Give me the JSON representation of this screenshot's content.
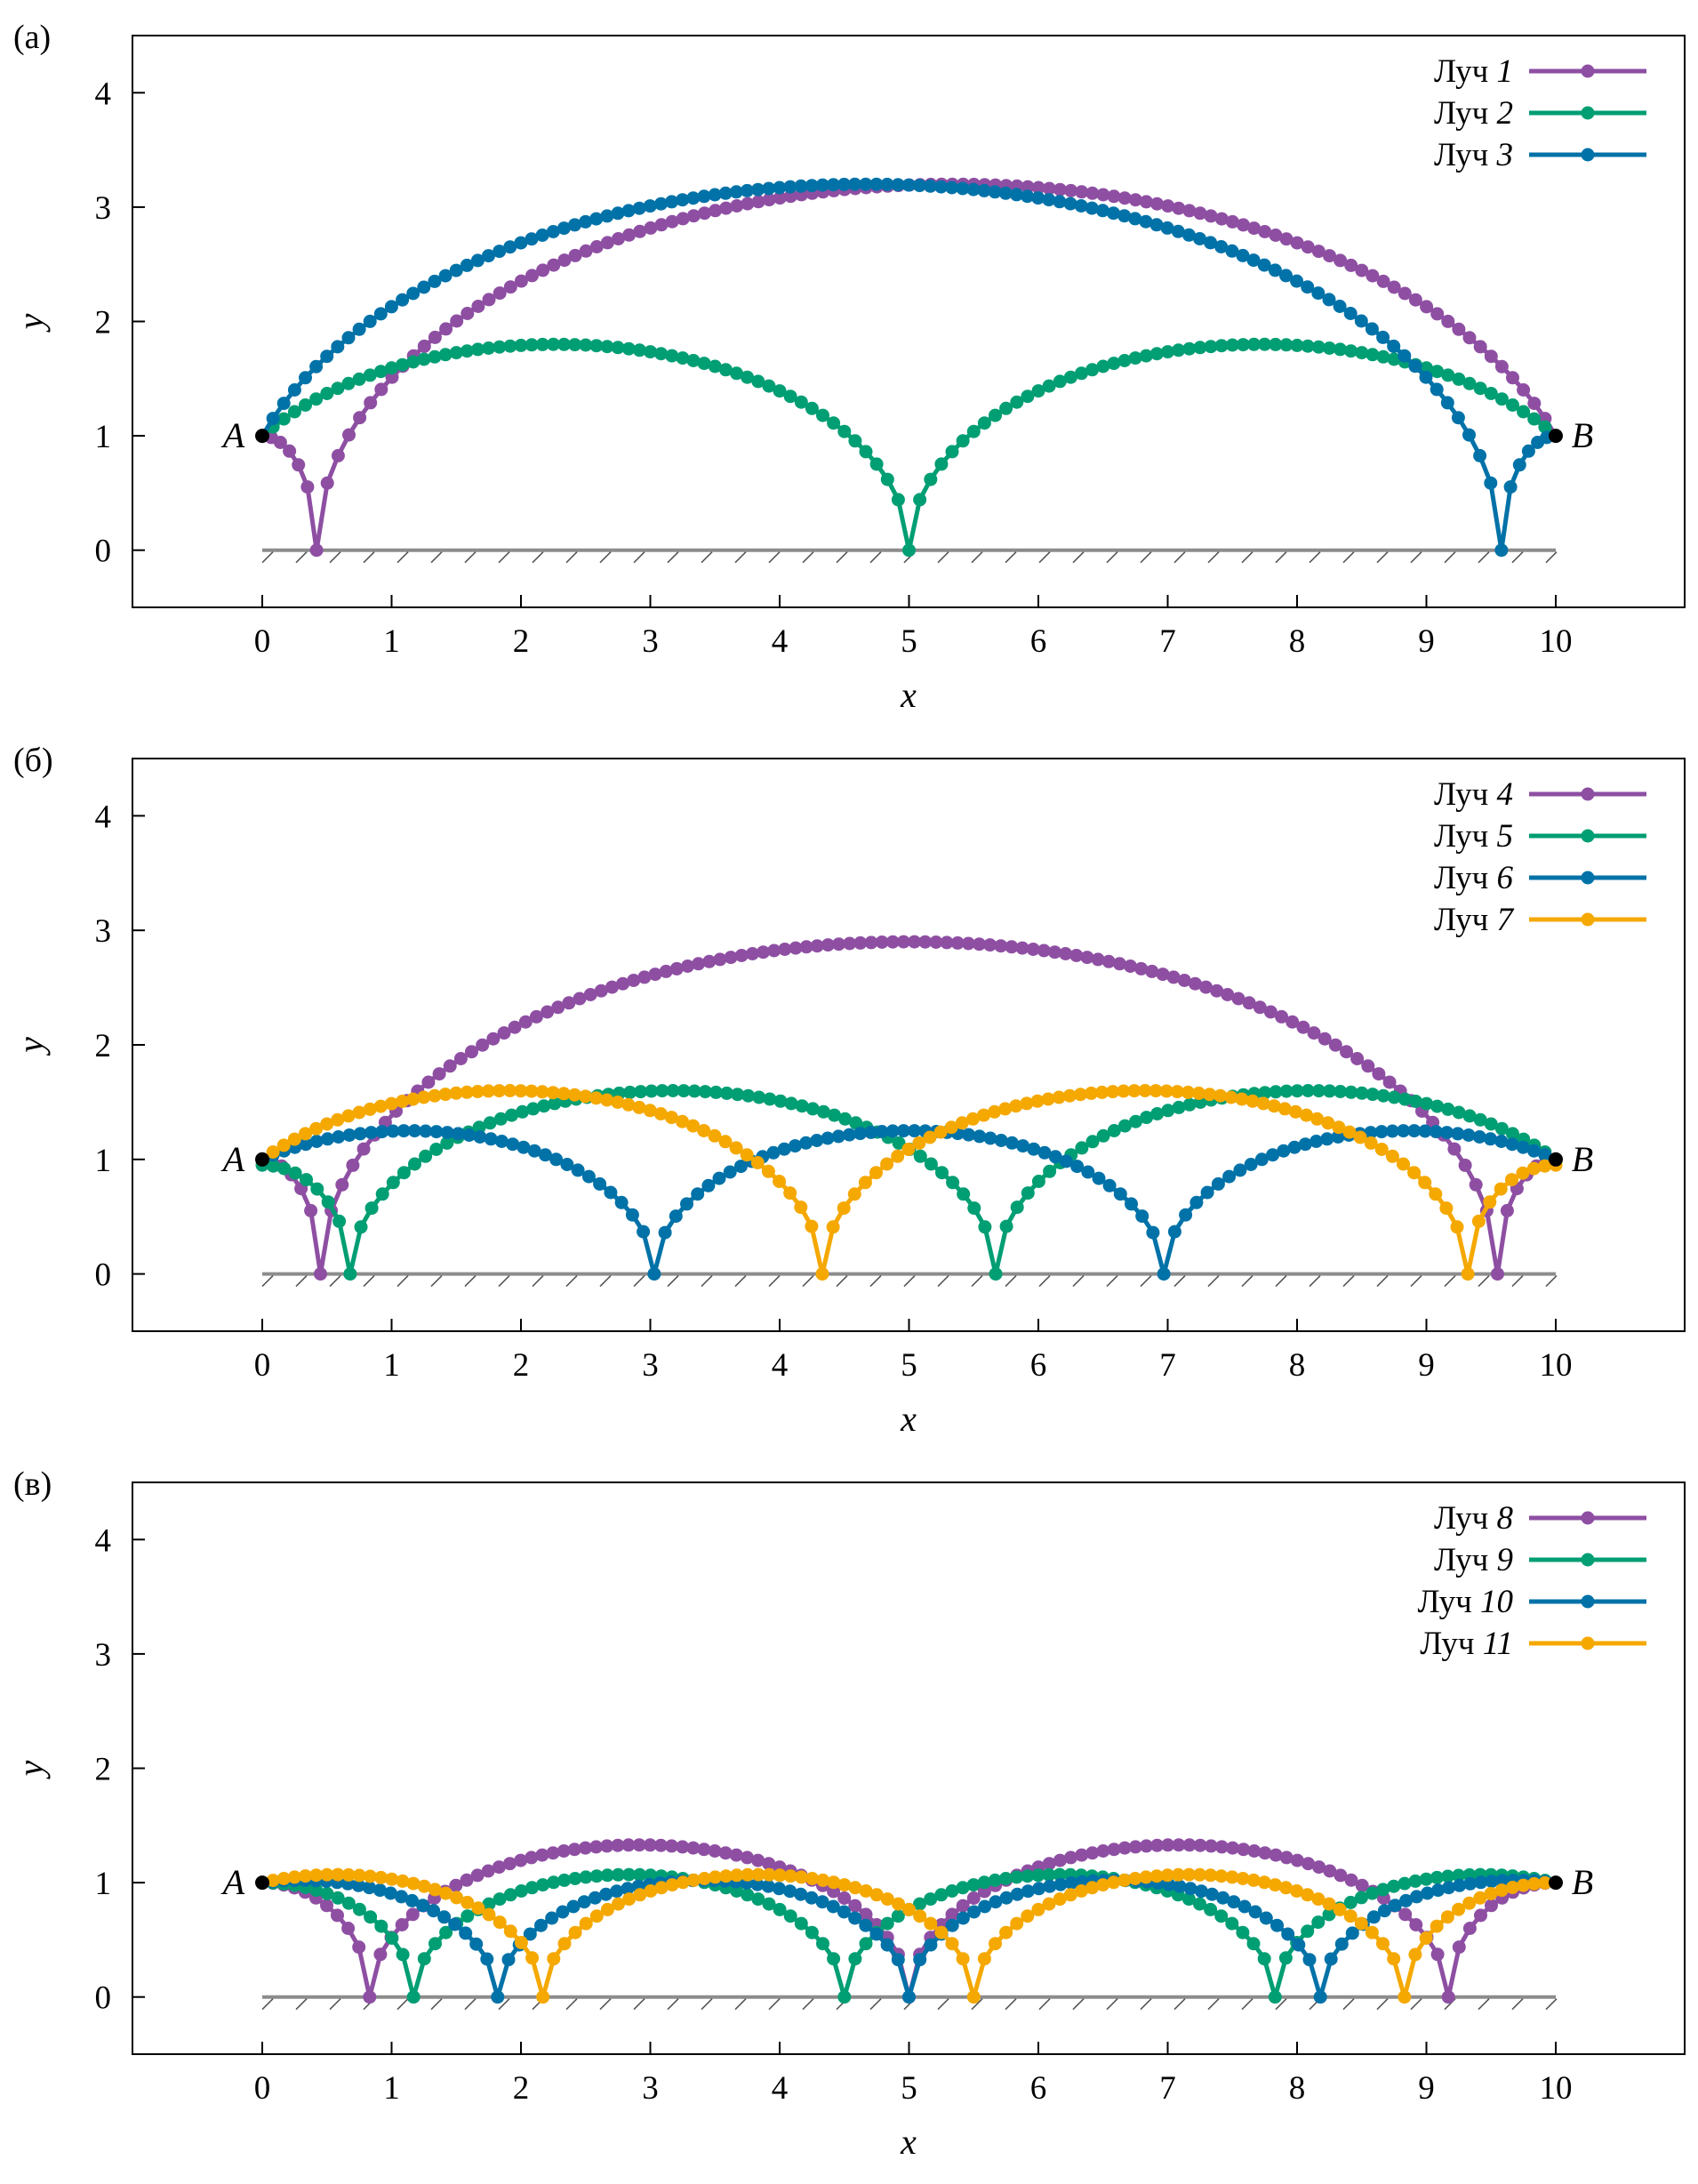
{
  "chart_data": [
    {
      "type": "line",
      "panel_label": "(а)",
      "xlabel": "x",
      "ylabel": "y",
      "xlim": [
        -1,
        11
      ],
      "ylim": [
        -0.5,
        4.5
      ],
      "xticks": [
        0,
        1,
        2,
        3,
        4,
        5,
        6,
        7,
        8,
        9,
        10
      ],
      "yticks": [
        0,
        1,
        2,
        3,
        4
      ],
      "legend_position": "top-right",
      "points": [
        {
          "label": "A",
          "x": 0,
          "y": 1
        },
        {
          "label": "B",
          "x": 10,
          "y": 1
        }
      ],
      "series": [
        {
          "prefix": "Луч",
          "name": "1",
          "color": "#8e4fa3",
          "arcs": [
            {
              "x0": 0,
              "x1": 0.42,
              "y_start": 1,
              "y_end": 0,
              "peak": 1
            },
            {
              "x0": 0.42,
              "x1": 10,
              "y_start": 0,
              "y_end": 1,
              "peak": 3.2
            }
          ]
        },
        {
          "prefix": "Луч",
          "name": "2",
          "color": "#009e73",
          "arcs": [
            {
              "x0": 0,
              "x1": 5,
              "y_start": 1,
              "y_end": 0,
              "peak": 1.8
            },
            {
              "x0": 5,
              "x1": 10,
              "y_start": 0,
              "y_end": 1,
              "peak": 1.8
            }
          ]
        },
        {
          "prefix": "Луч",
          "name": "3",
          "color": "#0072a8",
          "arcs": [
            {
              "x0": 0,
              "x1": 9.58,
              "y_start": 1,
              "y_end": 0,
              "peak": 3.2
            },
            {
              "x0": 9.58,
              "x1": 10,
              "y_start": 0,
              "y_end": 1,
              "peak": 1
            }
          ]
        }
      ]
    },
    {
      "type": "line",
      "panel_label": "(б)",
      "xlabel": "x",
      "ylabel": "y",
      "xlim": [
        -1,
        11
      ],
      "ylim": [
        -0.5,
        4.5
      ],
      "xticks": [
        0,
        1,
        2,
        3,
        4,
        5,
        6,
        7,
        8,
        9,
        10
      ],
      "yticks": [
        0,
        1,
        2,
        3,
        4
      ],
      "legend_position": "top-right",
      "points": [
        {
          "label": "A",
          "x": 0,
          "y": 1
        },
        {
          "label": "B",
          "x": 10,
          "y": 1
        }
      ],
      "series": [
        {
          "prefix": "Луч",
          "name": "4",
          "color": "#8e4fa3",
          "arcs": [
            {
              "x0": 0,
              "x1": 0.45,
              "y_start": 1,
              "y_end": 0,
              "peak": 1
            },
            {
              "x0": 0.45,
              "x1": 9.55,
              "y_start": 0,
              "y_end": 0,
              "peak": 2.9
            },
            {
              "x0": 9.55,
              "x1": 10,
              "y_start": 0,
              "y_end": 1,
              "peak": 1
            }
          ]
        },
        {
          "prefix": "Луч",
          "name": "5",
          "color": "#009e73",
          "arcs": [
            {
              "x0": 0,
              "x1": 0.68,
              "y_start": 0.95,
              "y_end": 0,
              "peak": 0.95
            },
            {
              "x0": 0.68,
              "x1": 5.67,
              "y_start": 0,
              "y_end": 0,
              "peak": 1.6
            },
            {
              "x0": 5.67,
              "x1": 10,
              "y_start": 0,
              "y_end": 1,
              "peak": 1.6
            }
          ]
        },
        {
          "prefix": "Луч",
          "name": "6",
          "color": "#0072a8",
          "arcs": [
            {
              "x0": 0,
              "x1": 3.03,
              "y_start": 1,
              "y_end": 0,
              "peak": 1.25
            },
            {
              "x0": 3.03,
              "x1": 6.97,
              "y_start": 0,
              "y_end": 0,
              "peak": 1.25
            },
            {
              "x0": 6.97,
              "x1": 10,
              "y_start": 0,
              "y_end": 1,
              "peak": 1.25
            }
          ]
        },
        {
          "prefix": "Луч",
          "name": "7",
          "color": "#f5a800",
          "arcs": [
            {
              "x0": 0,
              "x1": 4.33,
              "y_start": 1,
              "y_end": 0,
              "peak": 1.6
            },
            {
              "x0": 4.33,
              "x1": 9.32,
              "y_start": 0,
              "y_end": 0,
              "peak": 1.6
            },
            {
              "x0": 9.32,
              "x1": 10,
              "y_start": 0,
              "y_end": 0.95,
              "peak": 0.95
            }
          ]
        }
      ]
    },
    {
      "type": "line",
      "panel_label": "(в)",
      "xlabel": "x",
      "ylabel": "y",
      "xlim": [
        -1,
        11
      ],
      "ylim": [
        -0.5,
        4.5
      ],
      "xticks": [
        0,
        1,
        2,
        3,
        4,
        5,
        6,
        7,
        8,
        9,
        10
      ],
      "yticks": [
        0,
        1,
        2,
        3,
        4
      ],
      "legend_position": "top-right",
      "points": [
        {
          "label": "A",
          "x": 0,
          "y": 1
        },
        {
          "label": "B",
          "x": 10,
          "y": 1
        }
      ],
      "series": [
        {
          "prefix": "Луч",
          "name": "8",
          "color": "#8e4fa3",
          "arcs": [
            {
              "x0": 0,
              "x1": 0.83,
              "y_start": 1,
              "y_end": 0,
              "peak": 1
            },
            {
              "x0": 0.83,
              "x1": 5,
              "y_start": 0,
              "y_end": 0,
              "peak": 1.33
            },
            {
              "x0": 5,
              "x1": 9.17,
              "y_start": 0,
              "y_end": 0,
              "peak": 1.33
            },
            {
              "x0": 9.17,
              "x1": 10,
              "y_start": 0,
              "y_end": 1,
              "peak": 1
            }
          ]
        },
        {
          "prefix": "Луч",
          "name": "9",
          "color": "#009e73",
          "arcs": [
            {
              "x0": 0,
              "x1": 1.17,
              "y_start": 1,
              "y_end": 0,
              "peak": 1
            },
            {
              "x0": 1.17,
              "x1": 4.5,
              "y_start": 0,
              "y_end": 0,
              "peak": 1.07
            },
            {
              "x0": 4.5,
              "x1": 7.83,
              "y_start": 0,
              "y_end": 0,
              "peak": 1.07
            },
            {
              "x0": 7.83,
              "x1": 10,
              "y_start": 0,
              "y_end": 1,
              "peak": 1.07
            }
          ]
        },
        {
          "prefix": "Луч",
          "name": "10",
          "color": "#0072a8",
          "arcs": [
            {
              "x0": 0,
              "x1": 1.82,
              "y_start": 1,
              "y_end": 0,
              "peak": 1.02
            },
            {
              "x0": 1.82,
              "x1": 5,
              "y_start": 0,
              "y_end": 0,
              "peak": 1.02
            },
            {
              "x0": 5,
              "x1": 8.18,
              "y_start": 0,
              "y_end": 0,
              "peak": 1.02
            },
            {
              "x0": 8.18,
              "x1": 10,
              "y_start": 0,
              "y_end": 1,
              "peak": 1.02
            }
          ]
        },
        {
          "prefix": "Луч",
          "name": "11",
          "color": "#f5a800",
          "arcs": [
            {
              "x0": 0,
              "x1": 2.17,
              "y_start": 1,
              "y_end": 0,
              "peak": 1.07
            },
            {
              "x0": 2.17,
              "x1": 5.5,
              "y_start": 0,
              "y_end": 0,
              "peak": 1.07
            },
            {
              "x0": 5.5,
              "x1": 8.83,
              "y_start": 0,
              "y_end": 0,
              "peak": 1.07
            },
            {
              "x0": 8.83,
              "x1": 10,
              "y_start": 0,
              "y_end": 1,
              "peak": 1
            }
          ]
        }
      ]
    }
  ]
}
